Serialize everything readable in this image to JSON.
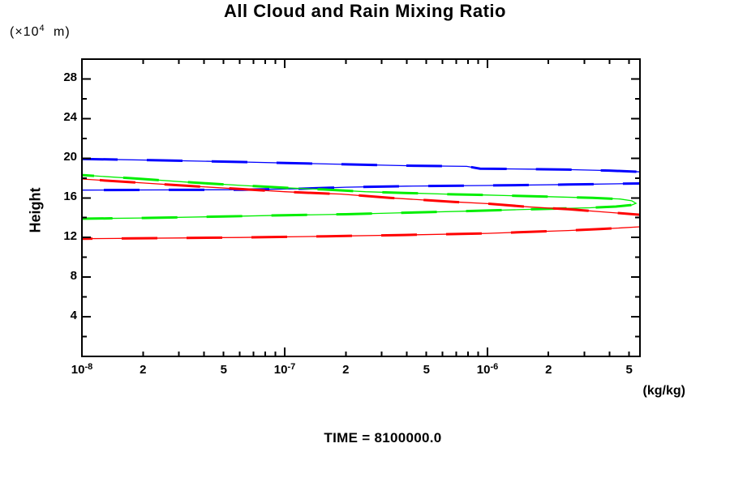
{
  "header": {
    "title": "All Cloud and Rain Mixing Ratio"
  },
  "y_axis": {
    "label": "Height",
    "unit_prefix": "(×10",
    "unit_sup": "4",
    "unit_suffix": " m)"
  },
  "x_axis": {
    "unit": "(kg/kg)"
  },
  "footer": {
    "time_label": "TIME = 8100000.0"
  },
  "chart_data": {
    "type": "line",
    "title": "All Cloud and Rain Mixing Ratio",
    "ylabel": "Height",
    "y_unit_label": "(x10^4 m)",
    "x_unit_label": "(kg/kg)",
    "footnote": "TIME = 8100000.0",
    "x_scale": "log",
    "y_scale": "linear",
    "xlim": [
      1e-08,
      5.65e-06
    ],
    "ylim": [
      0,
      30
    ],
    "grid": false,
    "legend": "none",
    "x_ticks": [
      {
        "v": 1e-08,
        "t": "10",
        "sup": "-8"
      },
      {
        "v": 2e-08,
        "t": "2"
      },
      {
        "v": 5e-08,
        "t": "5"
      },
      {
        "v": 1e-07,
        "t": "10",
        "sup": "-7"
      },
      {
        "v": 2e-07,
        "t": "2"
      },
      {
        "v": 5e-07,
        "t": "5"
      },
      {
        "v": 1e-06,
        "t": "10",
        "sup": "-6"
      },
      {
        "v": 2e-06,
        "t": "2"
      },
      {
        "v": 5e-06,
        "t": "5"
      }
    ],
    "x_major_decades": [
      1e-08,
      1e-07,
      1e-06
    ],
    "x_minor_multipliers": [
      2,
      3,
      4,
      5,
      6,
      7,
      8,
      9
    ],
    "y_ticks": [
      {
        "v": 28,
        "t": "28"
      },
      {
        "v": 24,
        "t": "24"
      },
      {
        "v": 20,
        "t": "20"
      },
      {
        "v": 16,
        "t": "16"
      },
      {
        "v": 12,
        "t": "12"
      },
      {
        "v": 8,
        "t": "8"
      },
      {
        "v": 4,
        "t": "4"
      }
    ],
    "y_minor_ticks": [
      26,
      22,
      18,
      14,
      10,
      6,
      2
    ],
    "series": [
      {
        "name": "blue-profile",
        "color": "#0000ff",
        "segments": [
          [
            [
              1e-08,
              19.93
            ],
            [
              2.5e-08,
              19.78
            ],
            [
              6.2e-08,
              19.62
            ],
            [
              1.6e-07,
              19.42
            ],
            [
              3.9e-07,
              19.25
            ],
            [
              7.9e-07,
              19.18
            ],
            [
              9.2e-07,
              18.95
            ],
            [
              1.6e-06,
              18.9
            ],
            [
              2.5e-06,
              18.85
            ],
            [
              4e-06,
              18.75
            ],
            [
              5.65e-06,
              18.62
            ]
          ],
          [
            [
              1e-08,
              16.78
            ],
            [
              6.2e-08,
              16.82
            ],
            [
              1.2e-07,
              16.92
            ],
            [
              2e-07,
              17.08
            ],
            [
              4e-07,
              17.18
            ],
            [
              1e-06,
              17.25
            ],
            [
              2.5e-06,
              17.35
            ],
            [
              5.65e-06,
              17.45
            ]
          ]
        ]
      },
      {
        "name": "green-profile",
        "color": "#00ee00",
        "segments": [
          [
            [
              1e-08,
              18.3
            ],
            [
              2e-08,
              17.9
            ],
            [
              3.5e-08,
              17.55
            ],
            [
              6.2e-08,
              17.25
            ],
            [
              1e-07,
              17.02
            ],
            [
              1.55e-07,
              16.85
            ],
            [
              2.5e-07,
              16.62
            ],
            [
              3.9e-07,
              16.5
            ],
            [
              7e-07,
              16.35
            ],
            [
              1e-06,
              16.28
            ],
            [
              2e-06,
              16.12
            ],
            [
              3.3e-06,
              16.0
            ],
            [
              4.5e-06,
              15.88
            ],
            [
              5.15e-06,
              15.7
            ],
            [
              5.4e-06,
              15.45
            ],
            [
              5.15e-06,
              15.28
            ],
            [
              4.3e-06,
              15.12
            ],
            [
              3.2e-06,
              15.0
            ],
            [
              2.2e-06,
              14.92
            ],
            [
              1.4e-06,
              14.8
            ],
            [
              7.5e-07,
              14.65
            ],
            [
              3.9e-07,
              14.5
            ],
            [
              2e-07,
              14.35
            ],
            [
              1e-07,
              14.25
            ],
            [
              5e-08,
              14.12
            ],
            [
              2e-08,
              13.97
            ],
            [
              1e-08,
              13.9
            ]
          ]
        ]
      },
      {
        "name": "red-profile",
        "color": "#ff0000",
        "segments": [
          [
            [
              1e-08,
              17.9
            ],
            [
              2e-08,
              17.5
            ],
            [
              3.5e-08,
              17.18
            ],
            [
              6.2e-08,
              16.88
            ],
            [
              1e-07,
              16.62
            ],
            [
              1.55e-07,
              16.45
            ],
            [
              1.9e-07,
              16.38
            ],
            [
              3.3e-07,
              16.0
            ],
            [
              6.8e-07,
              15.6
            ],
            [
              1e-06,
              15.42
            ],
            [
              1.57e-06,
              15.1
            ],
            [
              2.5e-06,
              14.85
            ],
            [
              3.6e-06,
              14.6
            ],
            [
              5.65e-06,
              14.3
            ]
          ],
          [
            [
              1e-08,
              11.88
            ],
            [
              3e-08,
              11.95
            ],
            [
              6e-08,
              12.0
            ],
            [
              1.6e-07,
              12.12
            ],
            [
              3.9e-07,
              12.25
            ],
            [
              1e-06,
              12.42
            ],
            [
              2.5e-06,
              12.7
            ],
            [
              3.6e-06,
              12.85
            ],
            [
              5.65e-06,
              13.08
            ]
          ]
        ]
      }
    ]
  }
}
